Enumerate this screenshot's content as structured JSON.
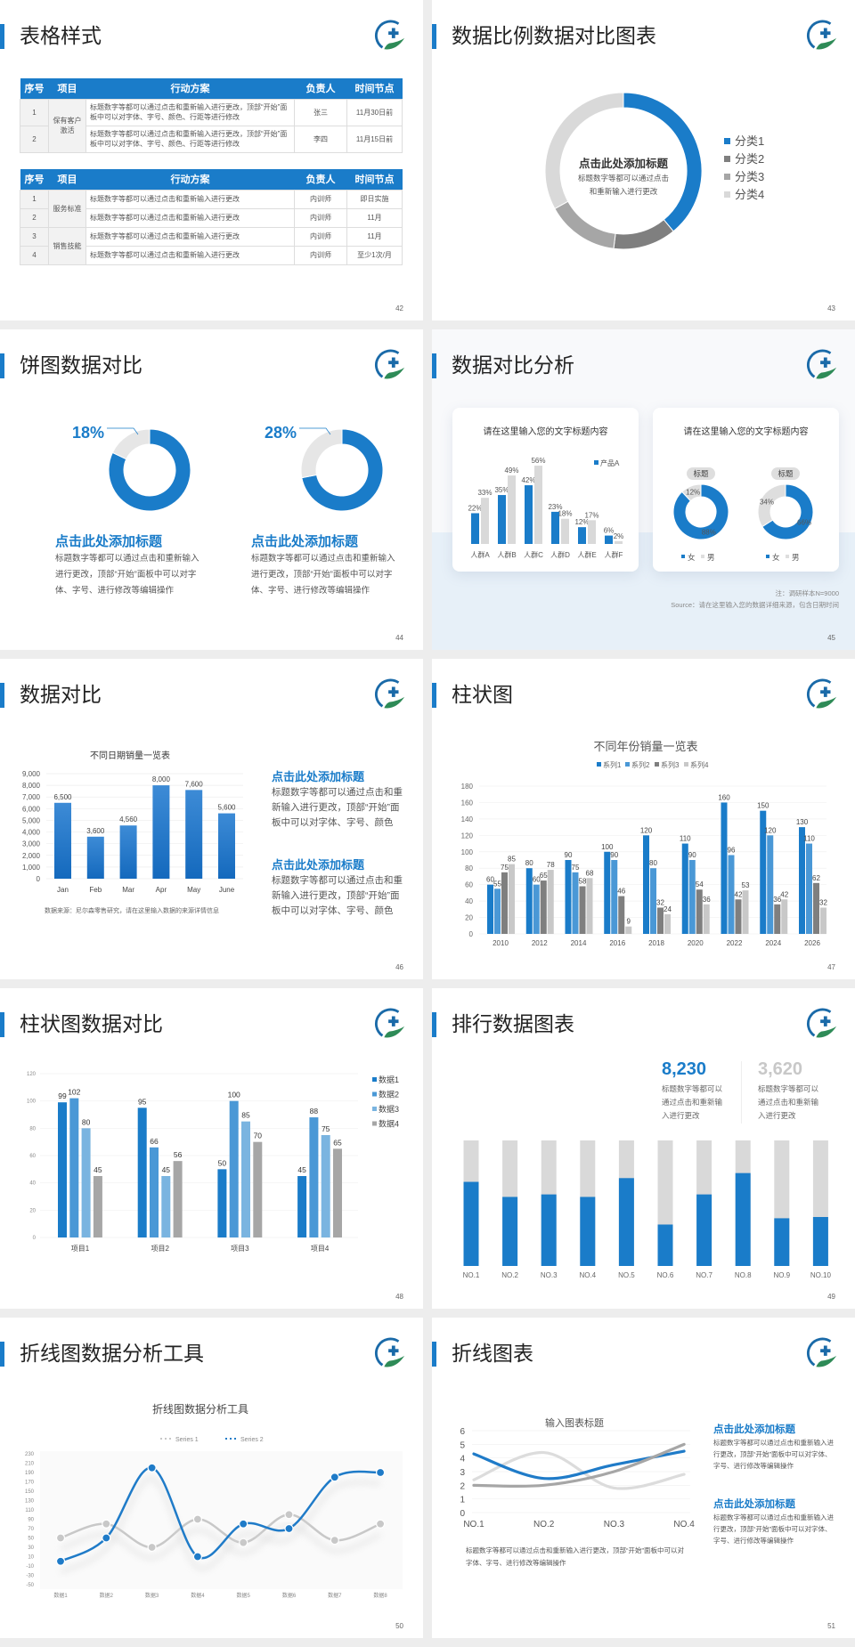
{
  "accent": "#1a7cc9",
  "slides": {
    "s42": {
      "title": "表格样式",
      "page": "42",
      "table1": {
        "headers": [
          "序号",
          "项目",
          "行动方案",
          "负责人",
          "时间节点"
        ],
        "group": "保有客户激活",
        "rows": [
          {
            "no": "1",
            "plan": "标题数字等都可以通过点击和重新输入进行更改，顶部“开始”面板中可以对字体、字号、颜色、行距等进行修改",
            "owner": "张三",
            "time": "11月30日前"
          },
          {
            "no": "2",
            "plan": "标题数字等都可以通过点击和重新输入进行更改，顶部“开始”面板中可以对字体、字号、颜色、行距等进行修改",
            "owner": "李四",
            "time": "11月15日前"
          }
        ]
      },
      "table2": {
        "headers": [
          "序号",
          "项目",
          "行动方案",
          "负责人",
          "时间节点"
        ],
        "groups": [
          "服务标准",
          "销售技能"
        ],
        "rows": [
          {
            "no": "1",
            "plan": "标题数字等都可以通过点击和重新输入进行更改",
            "owner": "内训师",
            "time": "即日实施"
          },
          {
            "no": "2",
            "plan": "标题数字等都可以通过点击和重新输入进行更改",
            "owner": "内训师",
            "time": "11月"
          },
          {
            "no": "3",
            "plan": "标题数字等都可以通过点击和重新输入进行更改",
            "owner": "内训师",
            "time": "11月"
          },
          {
            "no": "4",
            "plan": "标题数字等都可以通过点击和重新输入进行更改",
            "owner": "内训师",
            "time": "至少1次/月"
          }
        ]
      }
    },
    "s43": {
      "title": "数据比例数据对比图表",
      "page": "43",
      "center_title": "点击此处添加标题",
      "center_text": "标题数字等都可以通过点击和重新输入进行更改"
    },
    "s44": {
      "title": "饼图数据对比",
      "page": "44",
      "items": [
        {
          "heading": "点击此处添加标题",
          "text": "标题数字等都可以通过点击和重新输入进行更改，顶部“开始”面板中可以对字体、字号、进行修改等编辑操作"
        },
        {
          "heading": "点击此处添加标题",
          "text": "标题数字等都可以通过点击和重新输入进行更改，顶部“开始”面板中可以对字体、字号、进行修改等编辑操作"
        }
      ]
    },
    "s45": {
      "title": "数据对比分析",
      "page": "45",
      "card1_title": "请在这里输入您的文字标题内容",
      "card2_title": "请在这里输入您的文字标题内容",
      "pills": [
        "标题",
        "标题"
      ],
      "note": "注：调研样本N=9000",
      "source": "Source：请在这里输入您的数据详细来源，包含日期时间"
    },
    "s46": {
      "title": "数据对比",
      "page": "46",
      "source": "数据来源：尼尔森零售研究，请在这里输入数据的来源详情信息",
      "items": [
        {
          "heading": "点击此处添加标题",
          "text": "标题数字等都可以通过点击和重新输入进行更改，顶部“开始”面板中可以对字体、字号、颜色"
        },
        {
          "heading": "点击此处添加标题",
          "text": "标题数字等都可以通过点击和重新输入进行更改，顶部“开始”面板中可以对字体、字号、颜色"
        }
      ]
    },
    "s47": {
      "title": "柱状图",
      "page": "47"
    },
    "s48": {
      "title": "柱状图数据对比",
      "page": "48"
    },
    "s49": {
      "title": "排行数据图表",
      "page": "49",
      "stats": [
        {
          "value": "8,230",
          "text": "标题数字等都可以通过点击和重新输入进行更改",
          "color": "#1a7cc9"
        },
        {
          "value": "3,620",
          "text": "标题数字等都可以通过点击和重新输入进行更改",
          "color": "#c8c8c8"
        }
      ]
    },
    "s50": {
      "title": "折线图数据分析工具",
      "page": "50"
    },
    "s51": {
      "title": "折线图表",
      "page": "51",
      "items": [
        {
          "heading": "点击此处添加标题",
          "text": "标题数字等都可以通过点击和重新输入进行更改，顶部“开始”面板中可以对字体、字号、进行修改等编辑操作"
        },
        {
          "heading": "点击此处添加标题",
          "text": "标题数字等都可以通过点击和重新输入进行更改，顶部“开始”面板中可以对字体、字号、进行修改等编辑操作"
        }
      ],
      "footer": "标题数字等都可以通过点击和重新输入进行更改，顶部“开始”面板中可以对字体、字号、进行修改等编辑操作"
    }
  },
  "chart_data": [
    {
      "type": "pie",
      "donut": true,
      "categories": [
        "分类1",
        "分类2",
        "分类3",
        "分类4"
      ],
      "values": [
        39,
        13,
        15,
        33
      ],
      "colors": [
        "#1a7cc9",
        "#7f7f7f",
        "#a6a6a6",
        "#d9d9d9"
      ],
      "legend": "right"
    },
    {
      "type": "pie",
      "donut": true,
      "highlight_label": "18%",
      "values": [
        82,
        18
      ],
      "colors": [
        "#1a7cc9",
        "#e6e6e6"
      ]
    },
    {
      "type": "pie",
      "donut": true,
      "highlight_label": "28%",
      "values": [
        72,
        28
      ],
      "colors": [
        "#1a7cc9",
        "#e6e6e6"
      ]
    },
    {
      "type": "bar",
      "categories": [
        "人群A",
        "人群B",
        "人群C",
        "人群D",
        "人群E",
        "人群F"
      ],
      "unit": "%",
      "series": [
        {
          "name": "产品A",
          "values": [
            22,
            35,
            42,
            23,
            12,
            6
          ],
          "color": "#1a7cc9"
        },
        {
          "values": [
            33,
            49,
            56,
            18,
            17,
            2
          ],
          "color": "#d9d9d9"
        }
      ],
      "legend": "top-right"
    },
    {
      "type": "pie",
      "donut": true,
      "categories": [
        "女",
        "男"
      ],
      "values": [
        88,
        12
      ],
      "colors": [
        "#1a7cc9",
        "#dedede"
      ],
      "legend": "bottom"
    },
    {
      "type": "pie",
      "donut": true,
      "categories": [
        "女",
        "男"
      ],
      "values": [
        66,
        34
      ],
      "colors": [
        "#1a7cc9",
        "#dedede"
      ],
      "legend": "bottom"
    },
    {
      "type": "bar",
      "title": "不同日期销量一览表",
      "categories": [
        "Jan",
        "Feb",
        "Mar",
        "Apr",
        "May",
        "June"
      ],
      "values": [
        6500,
        3600,
        4560,
        8000,
        7600,
        5600
      ],
      "ylim": [
        0,
        9000
      ],
      "ytick_step": 1000,
      "grid": true
    },
    {
      "type": "bar",
      "title": "不同年份销量一览表",
      "categories": [
        "2010",
        "2012",
        "2014",
        "2016",
        "2018",
        "2020",
        "2022",
        "2024",
        "2026"
      ],
      "ylim": [
        0,
        180
      ],
      "ytick_step": 20,
      "grid": true,
      "legend": "top",
      "series": [
        {
          "name": "系列1",
          "values": [
            60,
            80,
            90,
            100,
            120,
            110,
            160,
            150,
            130
          ],
          "color": "#1a7cc9"
        },
        {
          "name": "系列2",
          "values": [
            55,
            60,
            75,
            90,
            80,
            90,
            96,
            120,
            110
          ],
          "color": "#4a98d6"
        },
        {
          "name": "系列3",
          "values": [
            75,
            65,
            58,
            46,
            32,
            54,
            42,
            36,
            62
          ],
          "color": "#7f7f7f"
        },
        {
          "name": "系列4",
          "values": [
            85,
            78,
            68,
            9,
            24,
            36,
            53,
            42,
            32
          ],
          "color": "#c8c8c8"
        }
      ]
    },
    {
      "type": "bar",
      "categories": [
        "项目1",
        "项目2",
        "项目3",
        "项目4"
      ],
      "ylim": [
        0,
        120
      ],
      "ytick_step": 20,
      "grid": true,
      "legend": "right",
      "series": [
        {
          "name": "数据1",
          "values": [
            99,
            95,
            50,
            45
          ],
          "color": "#1a7cc9"
        },
        {
          "name": "数据2",
          "values": [
            102,
            66,
            100,
            88
          ],
          "color": "#4a98d6"
        },
        {
          "name": "数据3",
          "values": [
            80,
            45,
            85,
            75
          ],
          "color": "#7ab4e0"
        },
        {
          "name": "数据4",
          "values": [
            45,
            56,
            70,
            65
          ],
          "color": "#a6a6a6"
        }
      ]
    },
    {
      "type": "bar",
      "stacked_percent": true,
      "categories": [
        "NO.1",
        "NO.2",
        "NO.3",
        "NO.4",
        "NO.5",
        "NO.6",
        "NO.7",
        "NO.8",
        "NO.9",
        "NO.10"
      ],
      "values": [
        0.67,
        0.55,
        0.57,
        0.55,
        0.7,
        0.33,
        0.57,
        0.74,
        0.38,
        0.39
      ],
      "colors": [
        "#1a7cc9",
        "#d9d9d9"
      ]
    },
    {
      "type": "line",
      "smooth": true,
      "title": "折线图数据分析工具",
      "categories": [
        "数据1",
        "数据2",
        "数据3",
        "数据4",
        "数据5",
        "数据6",
        "数据7",
        "数据8"
      ],
      "ylim": [
        -50,
        230
      ],
      "ytick_step": 20,
      "legend": "top",
      "series": [
        {
          "name": "Series 1",
          "values": [
            50,
            80,
            30,
            90,
            40,
            100,
            45,
            80
          ],
          "color": "#c8c8c8"
        },
        {
          "name": "Series 2",
          "values": [
            0,
            50,
            200,
            10,
            80,
            70,
            180,
            190
          ],
          "color": "#1f7bc8"
        }
      ]
    },
    {
      "type": "line",
      "smooth": true,
      "title": "输入图表标题",
      "categories": [
        "NO.1",
        "NO.2",
        "NO.3",
        "NO.4"
      ],
      "ylim": [
        0,
        6
      ],
      "ytick_step": 1,
      "grid": true,
      "series": [
        {
          "values": [
            2.4,
            4.4,
            1.8,
            2.8
          ],
          "color": "#dcdcdc"
        },
        {
          "values": [
            4.3,
            2.5,
            3.5,
            4.5
          ],
          "color": "#1f7bc8"
        },
        {
          "values": [
            2,
            2,
            3,
            5
          ],
          "color": "#a6a6a6"
        }
      ]
    }
  ]
}
